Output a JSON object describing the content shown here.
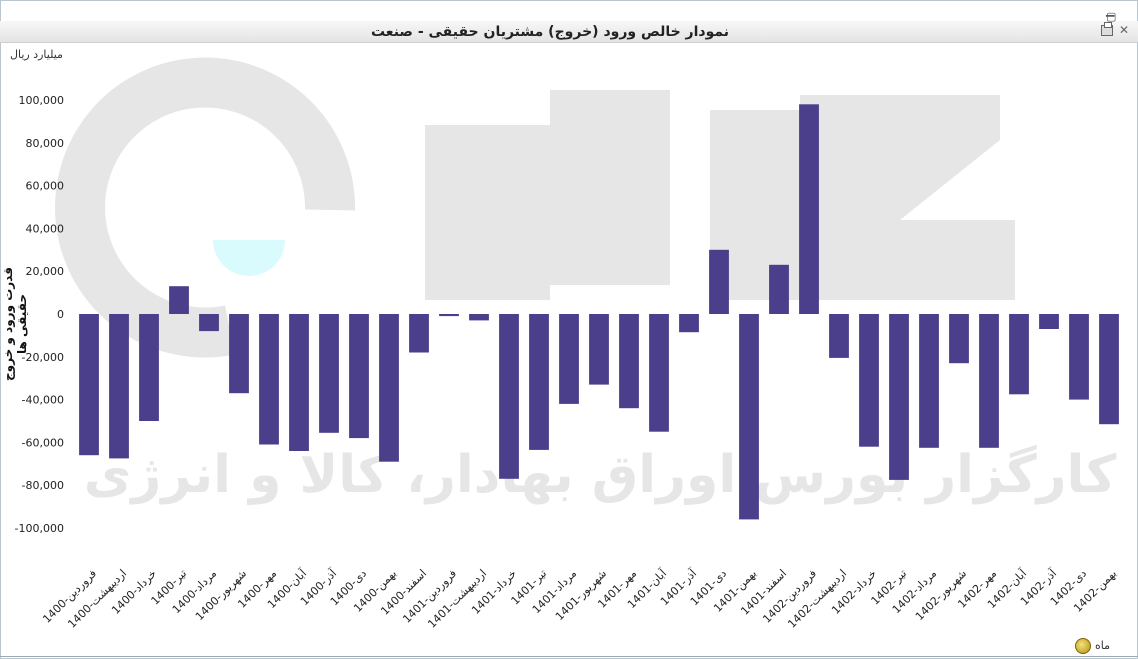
{
  "window": {
    "title": "نمودار خالص ورود (خروج) مشتریان حقیقی - صنعت"
  },
  "watermark": {
    "text": "کارگزار بورس اوراق بهادار، کالا و انرژی"
  },
  "chart_data": {
    "type": "bar",
    "title": "نمودار خالص ورود (خروج) مشتریان حقیقی - صنعت",
    "unit": "میلیارد ریال",
    "ylabel": "قدرت ورود و خروج حقیقی ها",
    "xlabel": "ماه",
    "ylim": [
      -100000,
      100000
    ],
    "yticks": [
      "100,000",
      "80,000",
      "60,000",
      "40,000",
      "20,000",
      "0",
      "-20,000",
      "-40,000",
      "-60,000",
      "-80,000",
      "-100,000"
    ],
    "ytick_values": [
      100000,
      80000,
      60000,
      40000,
      20000,
      0,
      -20000,
      -40000,
      -60000,
      -80000,
      -100000
    ],
    "bar_color": "#4b3e8a",
    "grid": false,
    "categories": [
      "1400-فروردین",
      "1400-اردیبهشت",
      "1400-خرداد",
      "1400-تیر",
      "1400-مرداد",
      "1400-شهریور",
      "1400-مهر",
      "1400-آبان",
      "1400-آذر",
      "1400-دی",
      "1400-بهمن",
      "1400-اسفند",
      "1401-فروردین",
      "1401-اردیبهشت",
      "1401-خرداد",
      "1401-تیر",
      "1401-مرداد",
      "1401-شهریور",
      "1401-مهر",
      "1401-آبان",
      "1401-آذر",
      "1401-دی",
      "1401-بهمن",
      "1401-اسفند",
      "1402-فروردین",
      "1402-اردیبهشت",
      "1402-خرداد",
      "1402-تیر",
      "1402-مرداد",
      "1402-شهریور",
      "1402-مهر",
      "1402-آبان",
      "1402-آذر",
      "1402-دی",
      "1402-بهمن"
    ],
    "values": [
      -66000,
      -67500,
      -50000,
      13000,
      -8000,
      -37000,
      -61000,
      -64000,
      -55500,
      -58000,
      -69000,
      -18000,
      -1000,
      -3000,
      -77000,
      -63500,
      -42000,
      -33000,
      -44000,
      -55000,
      -8500,
      30000,
      -96000,
      23000,
      98000,
      -20500,
      -62000,
      -77500,
      -62500,
      -23000,
      -62500,
      -37500,
      -7000,
      -40000,
      -51500
    ]
  }
}
